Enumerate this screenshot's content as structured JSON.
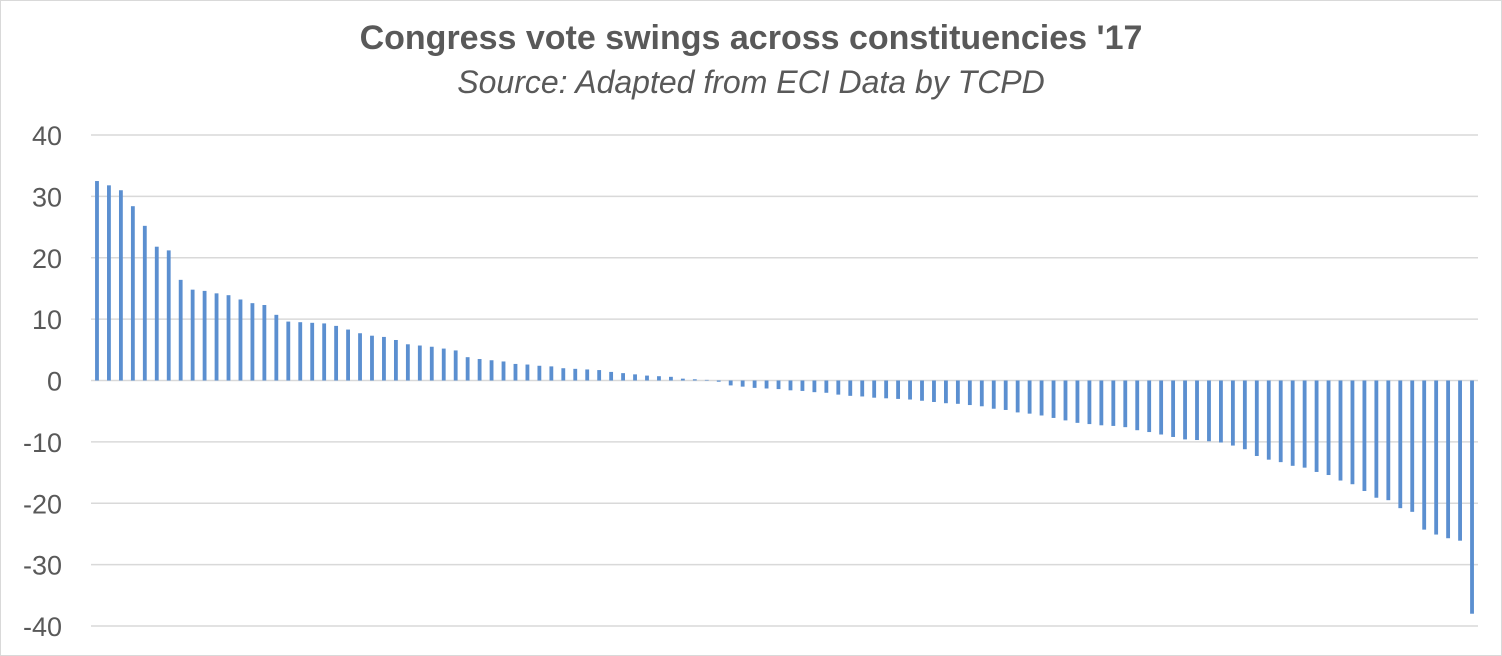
{
  "chart_data": {
    "type": "bar",
    "title": "Congress vote swings across constituencies '17",
    "subtitle": "Source: Adapted from ECI Data by TCPD",
    "xlabel": "",
    "ylabel": "",
    "ylim": [
      -40,
      40
    ],
    "yticks": [
      40,
      30,
      20,
      10,
      0,
      -10,
      -20,
      -30,
      -40
    ],
    "grid": true,
    "legend": "none",
    "bar_color": "#5b8fd0",
    "values": [
      32.5,
      31.8,
      31.0,
      28.4,
      25.2,
      21.8,
      21.2,
      16.4,
      14.8,
      14.6,
      14.2,
      13.9,
      13.2,
      12.6,
      12.3,
      10.7,
      9.6,
      9.5,
      9.4,
      9.3,
      8.9,
      8.3,
      7.7,
      7.3,
      7.1,
      6.6,
      5.9,
      5.7,
      5.5,
      5.2,
      4.9,
      3.8,
      3.5,
      3.3,
      3.1,
      2.7,
      2.6,
      2.4,
      2.3,
      2.0,
      1.9,
      1.8,
      1.7,
      1.4,
      1.2,
      1.0,
      0.8,
      0.7,
      0.6,
      0.3,
      0.2,
      0.1,
      -0.2,
      -0.8,
      -1.0,
      -1.2,
      -1.3,
      -1.4,
      -1.6,
      -1.7,
      -1.9,
      -2.0,
      -2.3,
      -2.5,
      -2.6,
      -2.8,
      -2.9,
      -3.0,
      -3.1,
      -3.3,
      -3.5,
      -3.7,
      -3.8,
      -4.0,
      -4.2,
      -4.6,
      -4.8,
      -5.2,
      -5.4,
      -5.7,
      -6.1,
      -6.5,
      -6.9,
      -7.1,
      -7.3,
      -7.4,
      -7.6,
      -8.1,
      -8.4,
      -8.8,
      -9.2,
      -9.6,
      -9.7,
      -9.9,
      -10.1,
      -10.6,
      -11.2,
      -12.3,
      -12.9,
      -13.3,
      -13.9,
      -14.2,
      -14.9,
      -15.4,
      -16.3,
      -16.9,
      -18.0,
      -19.1,
      -19.5,
      -20.8,
      -21.4,
      -24.3,
      -25.1,
      -25.7,
      -26.1,
      -38.0
    ]
  }
}
